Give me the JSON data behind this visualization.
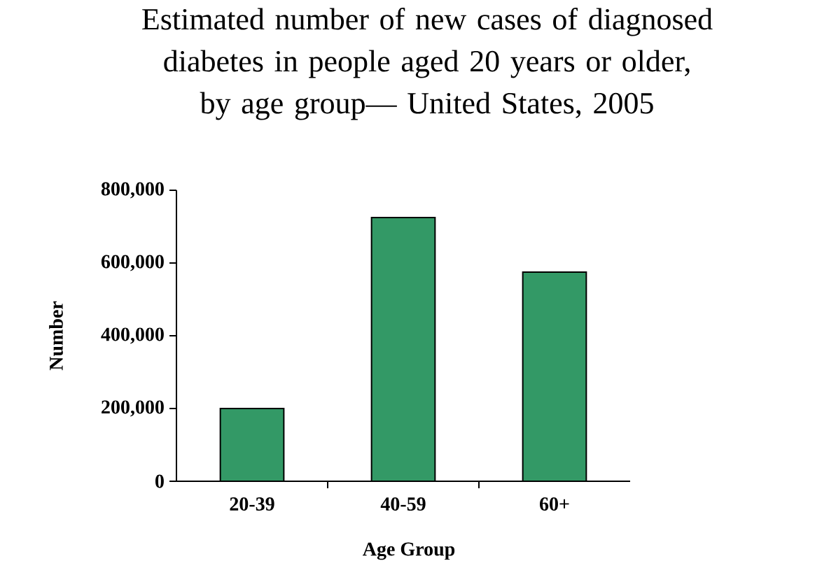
{
  "chart_data": {
    "type": "bar",
    "title": "Estimated number of new cases of diagnosed diabetes in people aged 20 years or older, by age group— United States, 2005",
    "xlabel": "Age Group",
    "ylabel": "Number",
    "categories": [
      "20-39",
      "40-59",
      "60+"
    ],
    "values": [
      200000,
      725000,
      575000
    ],
    "color": "#339966",
    "ylim": [
      0,
      800000
    ],
    "yticks": [
      {
        "value": 0,
        "label": "0"
      },
      {
        "value": 200000,
        "label": "200,000"
      },
      {
        "value": 400000,
        "label": "400,000"
      },
      {
        "value": 600000,
        "label": "600,000"
      },
      {
        "value": 800000,
        "label": "800,000"
      }
    ]
  }
}
